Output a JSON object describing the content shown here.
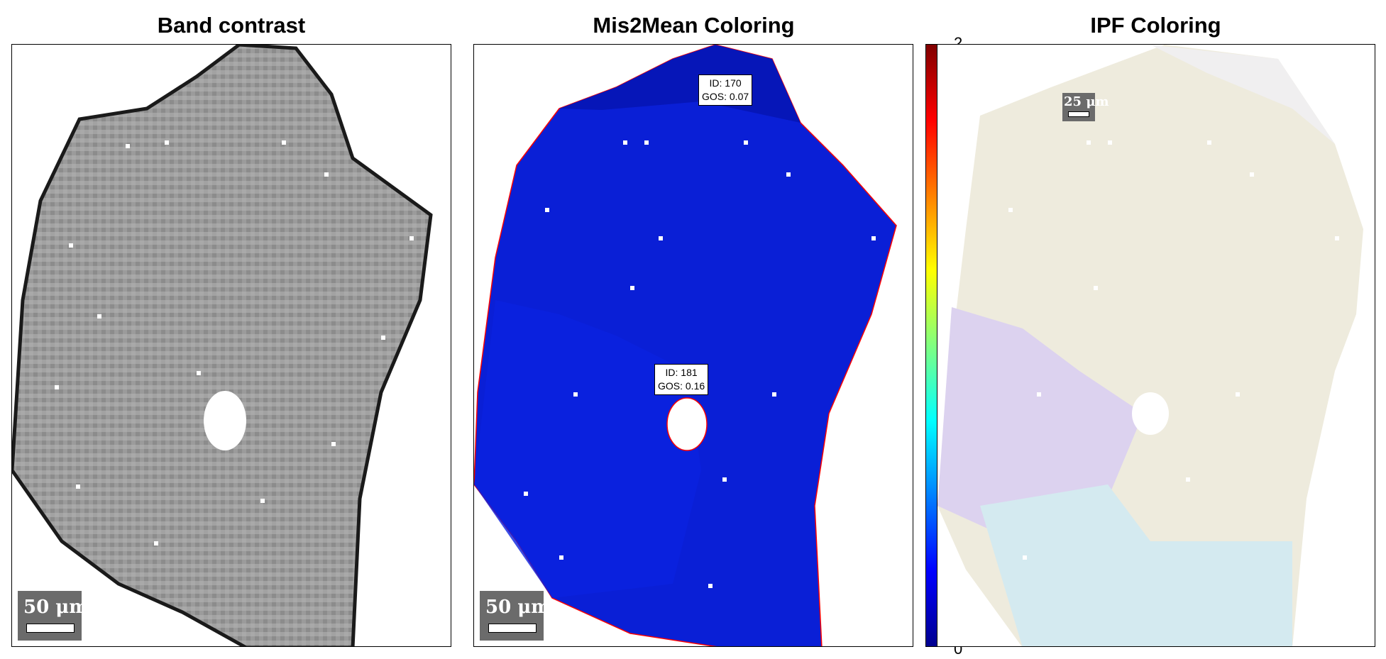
{
  "panels": [
    {
      "title": "Band contrast",
      "scale_label": "50 μm"
    },
    {
      "title": "Mis2Mean Coloring",
      "scale_label": "50 μm",
      "grains": [
        {
          "id_text": "ID: 170",
          "gos_text": "GOS: 0.07"
        },
        {
          "id_text": "ID: 181",
          "gos_text": "GOS: 0.16"
        }
      ]
    },
    {
      "title": "IPF Coloring",
      "scale_label": "25 μm"
    }
  ],
  "colorbar": {
    "max_label": "2",
    "min_label": "0"
  },
  "colors": {
    "band_contrast_gray": "#9a9a9a",
    "mis2mean_blue": "#0a1fd6",
    "grain_boundary": "#ff0000",
    "ipf_yellowish": "#eeebdd",
    "ipf_purple": "#dcd2ef",
    "ipf_cyan": "#d4eaf0"
  }
}
